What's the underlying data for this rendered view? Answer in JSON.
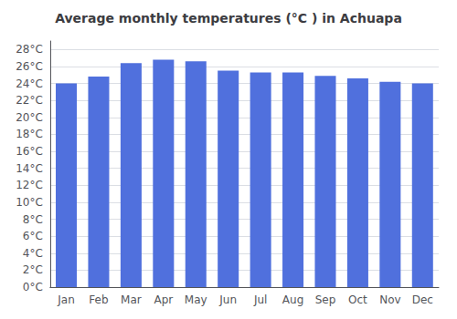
{
  "chart_data": {
    "type": "bar",
    "title": "Average monthly temperatures (°C ) in Achuapa",
    "categories": [
      "Jan",
      "Feb",
      "Mar",
      "Apr",
      "May",
      "Jun",
      "Jul",
      "Aug",
      "Sep",
      "Oct",
      "Nov",
      "Dec"
    ],
    "values": [
      24.0,
      24.8,
      26.4,
      26.8,
      26.6,
      25.5,
      25.3,
      25.3,
      24.9,
      24.6,
      24.2,
      24.0
    ],
    "ylim": [
      0,
      29
    ],
    "yticks": [
      {
        "value": 0,
        "label": "0°C"
      },
      {
        "value": 2,
        "label": "2°C"
      },
      {
        "value": 4,
        "label": "4°C"
      },
      {
        "value": 6,
        "label": "6°C"
      },
      {
        "value": 8,
        "label": "8°C"
      },
      {
        "value": 10,
        "label": "10°C"
      },
      {
        "value": 12,
        "label": "12°C"
      },
      {
        "value": 14,
        "label": "14°C"
      },
      {
        "value": 16,
        "label": "16°C"
      },
      {
        "value": 18,
        "label": "18°C"
      },
      {
        "value": 20,
        "label": "20°C"
      },
      {
        "value": 22,
        "label": "22°C"
      },
      {
        "value": 24,
        "label": "24°C"
      },
      {
        "value": 26,
        "label": "26°C"
      },
      {
        "value": 28,
        "label": "28°C"
      }
    ],
    "grid": true
  }
}
